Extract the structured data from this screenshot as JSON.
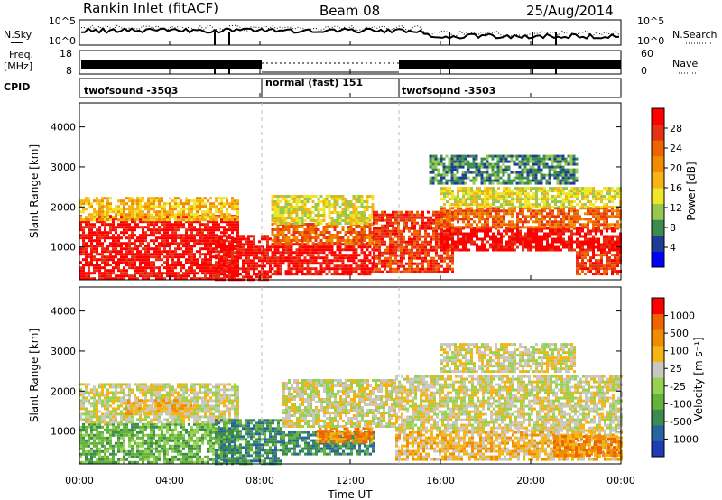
{
  "header": {
    "station": "Rankin Inlet (fitACF)",
    "beam": "Beam 08",
    "date": "25/Aug/2014"
  },
  "left_labels": {
    "nsky": "N.Sky",
    "freq": "Freq.",
    "freq_unit": "[MHz]",
    "cpid": "CPID"
  },
  "right_labels": {
    "nsearch": "N.Search",
    "nave": "Nave"
  },
  "noise_axis": {
    "top": "10^5",
    "bottom": "10^0"
  },
  "freq_axis": {
    "top": "18",
    "bottom": "8"
  },
  "nave_axis": {
    "top": "60",
    "bottom": "0"
  },
  "cpid_segments": [
    {
      "label": "twofsound -3503",
      "start_hour": 0,
      "end_hour": 8
    },
    {
      "label": "normal (fast) 151",
      "start_hour": 8,
      "end_hour": 14
    },
    {
      "label": "twofsound -3503",
      "start_hour": 14,
      "end_hour": 24
    }
  ],
  "time_axis": {
    "label": "Time UT",
    "ticks": [
      "00:00",
      "04:00",
      "08:00",
      "12:00",
      "16:00",
      "20:00",
      "00:00"
    ]
  },
  "chart_data": [
    {
      "type": "heatmap",
      "ylabel": "Slant Range [km]",
      "yticks": [
        "1000",
        "2000",
        "3000",
        "4000"
      ],
      "ylim": [
        180,
        4600
      ],
      "xlim_hours": [
        0,
        24
      ],
      "colorbar": {
        "label": "Power [dB]",
        "ticks": [
          "4",
          "8",
          "12",
          "16",
          "20",
          "24",
          "28"
        ],
        "colors": [
          "#0000ff",
          "#1e3c96",
          "#3c8c50",
          "#96c850",
          "#f0e628",
          "#f5b414",
          "#f08c00",
          "#f06400",
          "#e63214",
          "#ff0000"
        ]
      },
      "echo_bands": [
        {
          "start_hour": 0.0,
          "end_hour": 7.0,
          "range_min": 200,
          "range_max": 1800,
          "level": 9
        },
        {
          "start_hour": 0.0,
          "end_hour": 7.0,
          "range_min": 1700,
          "range_max": 2250,
          "level": 5
        },
        {
          "start_hour": 6.0,
          "end_hour": 8.5,
          "range_min": 200,
          "range_max": 1300,
          "level": 9
        },
        {
          "start_hour": 8.5,
          "end_hour": 13.0,
          "range_min": 300,
          "range_max": 1100,
          "level": 9
        },
        {
          "start_hour": 8.5,
          "end_hour": 13.0,
          "range_min": 1100,
          "range_max": 1600,
          "level": 7
        },
        {
          "start_hour": 8.5,
          "end_hour": 13.0,
          "range_min": 1600,
          "range_max": 2300,
          "level": 4
        },
        {
          "start_hour": 13.0,
          "end_hour": 16.5,
          "range_min": 400,
          "range_max": 1900,
          "level": 8
        },
        {
          "start_hour": 16.0,
          "end_hour": 24.0,
          "range_min": 900,
          "range_max": 1500,
          "level": 9
        },
        {
          "start_hour": 16.0,
          "end_hour": 24.0,
          "range_min": 1500,
          "range_max": 2000,
          "level": 7
        },
        {
          "start_hour": 16.0,
          "end_hour": 24.0,
          "range_min": 2000,
          "range_max": 2500,
          "level": 4
        },
        {
          "start_hour": 15.5,
          "end_hour": 22.0,
          "range_min": 2600,
          "range_max": 3300,
          "level": 2
        },
        {
          "start_hour": 22.0,
          "end_hour": 24.0,
          "range_min": 300,
          "range_max": 900,
          "level": 8
        }
      ]
    },
    {
      "type": "heatmap",
      "ylabel": "Slant Range [km]",
      "yticks": [
        "1000",
        "2000",
        "3000",
        "4000"
      ],
      "ylim": [
        180,
        4600
      ],
      "xlim_hours": [
        0,
        24
      ],
      "colorbar": {
        "label": "Velocity [m s⁻¹]",
        "ticks": [
          "1000",
          "500",
          "100",
          "25",
          "-25",
          "-100",
          "-500",
          "-1000"
        ],
        "colors": [
          "#1e3cb4",
          "#2864a0",
          "#3c8c50",
          "#64b43c",
          "#96d250",
          "#c8c8c0",
          "#f5b414",
          "#f08c00",
          "#f06400",
          "#ff0000"
        ]
      },
      "echo_bands": [
        {
          "start_hour": 0.0,
          "end_hour": 7.0,
          "range_min": 200,
          "range_max": 1200,
          "level": 3
        },
        {
          "start_hour": 0.0,
          "end_hour": 7.0,
          "range_min": 1200,
          "range_max": 2200,
          "level": 5
        },
        {
          "start_hour": 2.0,
          "end_hour": 5.0,
          "range_min": 1400,
          "range_max": 1800,
          "level": 6
        },
        {
          "start_hour": 6.0,
          "end_hour": 9.0,
          "range_min": 200,
          "range_max": 1300,
          "level": 2
        },
        {
          "start_hour": 9.0,
          "end_hour": 13.0,
          "range_min": 400,
          "range_max": 1000,
          "level": 2
        },
        {
          "start_hour": 10.5,
          "end_hour": 13.0,
          "range_min": 700,
          "range_max": 1100,
          "level": 7
        },
        {
          "start_hour": 9.0,
          "end_hour": 14.0,
          "range_min": 1100,
          "range_max": 2300,
          "level": 5
        },
        {
          "start_hour": 14.0,
          "end_hour": 24.0,
          "range_min": 1000,
          "range_max": 2400,
          "level": 5
        },
        {
          "start_hour": 14.0,
          "end_hour": 24.0,
          "range_min": 300,
          "range_max": 1000,
          "level": 6
        },
        {
          "start_hour": 21.0,
          "end_hour": 24.0,
          "range_min": 400,
          "range_max": 900,
          "level": 7
        },
        {
          "start_hour": 16.0,
          "end_hour": 22.0,
          "range_min": 2500,
          "range_max": 3200,
          "level": 5
        }
      ]
    }
  ]
}
